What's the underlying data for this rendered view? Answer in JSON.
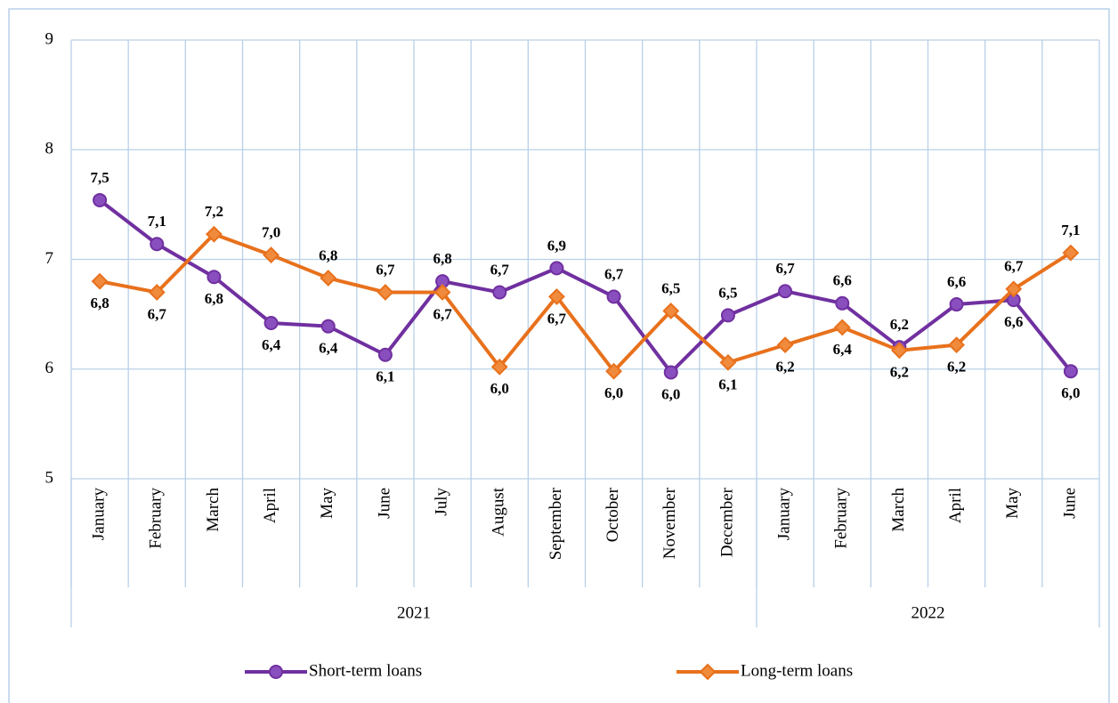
{
  "chart_data": {
    "type": "line",
    "categories": [
      "January",
      "February",
      "March",
      "April",
      "May",
      "June",
      "July",
      "August",
      "September",
      "October",
      "November",
      "December",
      "January",
      "February",
      "March",
      "April",
      "May",
      "June"
    ],
    "x_groups": [
      {
        "name": "2021",
        "count": 12
      },
      {
        "name": "2022",
        "count": 6
      }
    ],
    "series": [
      {
        "name": "Short-term loans",
        "color": "#7030a0",
        "label_color": "#7030a0",
        "marker": "circle",
        "values": [
          7.54,
          7.14,
          6.84,
          6.42,
          6.39,
          6.13,
          6.8,
          6.7,
          6.92,
          6.66,
          5.97,
          6.49,
          6.71,
          6.6,
          6.2,
          6.59,
          6.63,
          5.98
        ],
        "value_labels": [
          "7,5",
          "7,1",
          "6,8",
          "6,4",
          "6,4",
          "6,1",
          "6,8",
          "6,7",
          "6,9",
          "6,7",
          "6,0",
          "6,5",
          "6,7",
          "6,6",
          "6,2",
          "6,6",
          "6,6",
          "6,0"
        ]
      },
      {
        "name": "Long-term loans",
        "color": "#e8711c",
        "label_color": "#a9530f",
        "marker": "diamond",
        "values": [
          6.8,
          6.7,
          7.23,
          7.04,
          6.83,
          6.7,
          6.7,
          6.02,
          6.66,
          5.98,
          6.53,
          6.06,
          6.22,
          6.38,
          6.17,
          6.22,
          6.73,
          7.06
        ],
        "value_labels": [
          "6,8",
          "6,7",
          "7,2",
          "7,0",
          "6,8",
          "6,7",
          "6,7",
          "6,0",
          "6,7",
          "6,0",
          "6,5",
          "6,1",
          "6,2",
          "6,4",
          "6,2",
          "6,2",
          "6,7",
          "7,1"
        ]
      }
    ],
    "ylim": [
      5,
      9
    ],
    "yticks": [
      5,
      6,
      7,
      8,
      9
    ],
    "grid": true,
    "legend": "bottom"
  }
}
